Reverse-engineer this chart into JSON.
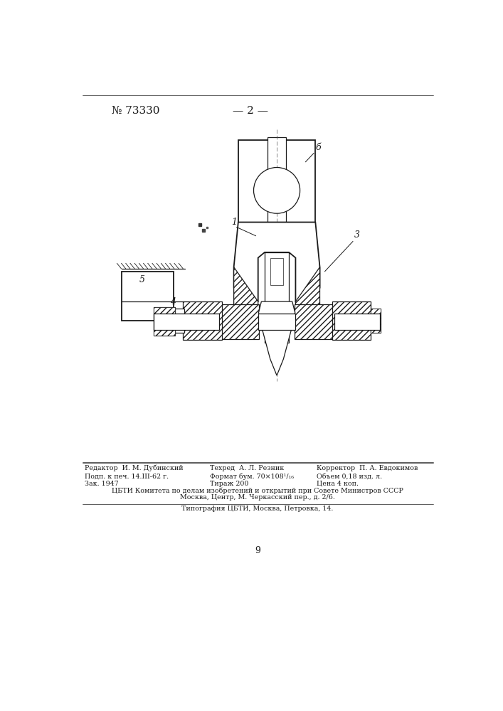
{
  "bg_color": "#ffffff",
  "page_width": 7.07,
  "page_height": 10.0,
  "header_text": "№ 73330",
  "header_center": "— 2 —",
  "page_number": "9",
  "line_color": "#1a1a1a",
  "label_color": "#1a1a1a",
  "footer_row1_l": "Редактор  И. М. Дубинский",
  "footer_row1_c": "Техред  А. Л. Резник",
  "footer_row1_r": "Корректор  П. А. Евдокимов",
  "footer_row2_l": "Подп. к печ. 14.III-62 г.",
  "footer_row2_c": "Формат бум. 70×108¹/₁₆",
  "footer_row2_r": "Объем 0,18 изд. л.",
  "footer_row3_l": "Зак. 1947",
  "footer_row3_c": "Тираж 200",
  "footer_row3_r": "Цена 4 коп.",
  "footer_row4": "ЦБТИ Комитета по делам изобретений и открытий при Совете Министров СССР",
  "footer_row5": "Москва, Центр, М. Черкасский пер., д. 2/6.",
  "footer_row6": "Типография ЦБТИ, Москва, Петровка, 14."
}
